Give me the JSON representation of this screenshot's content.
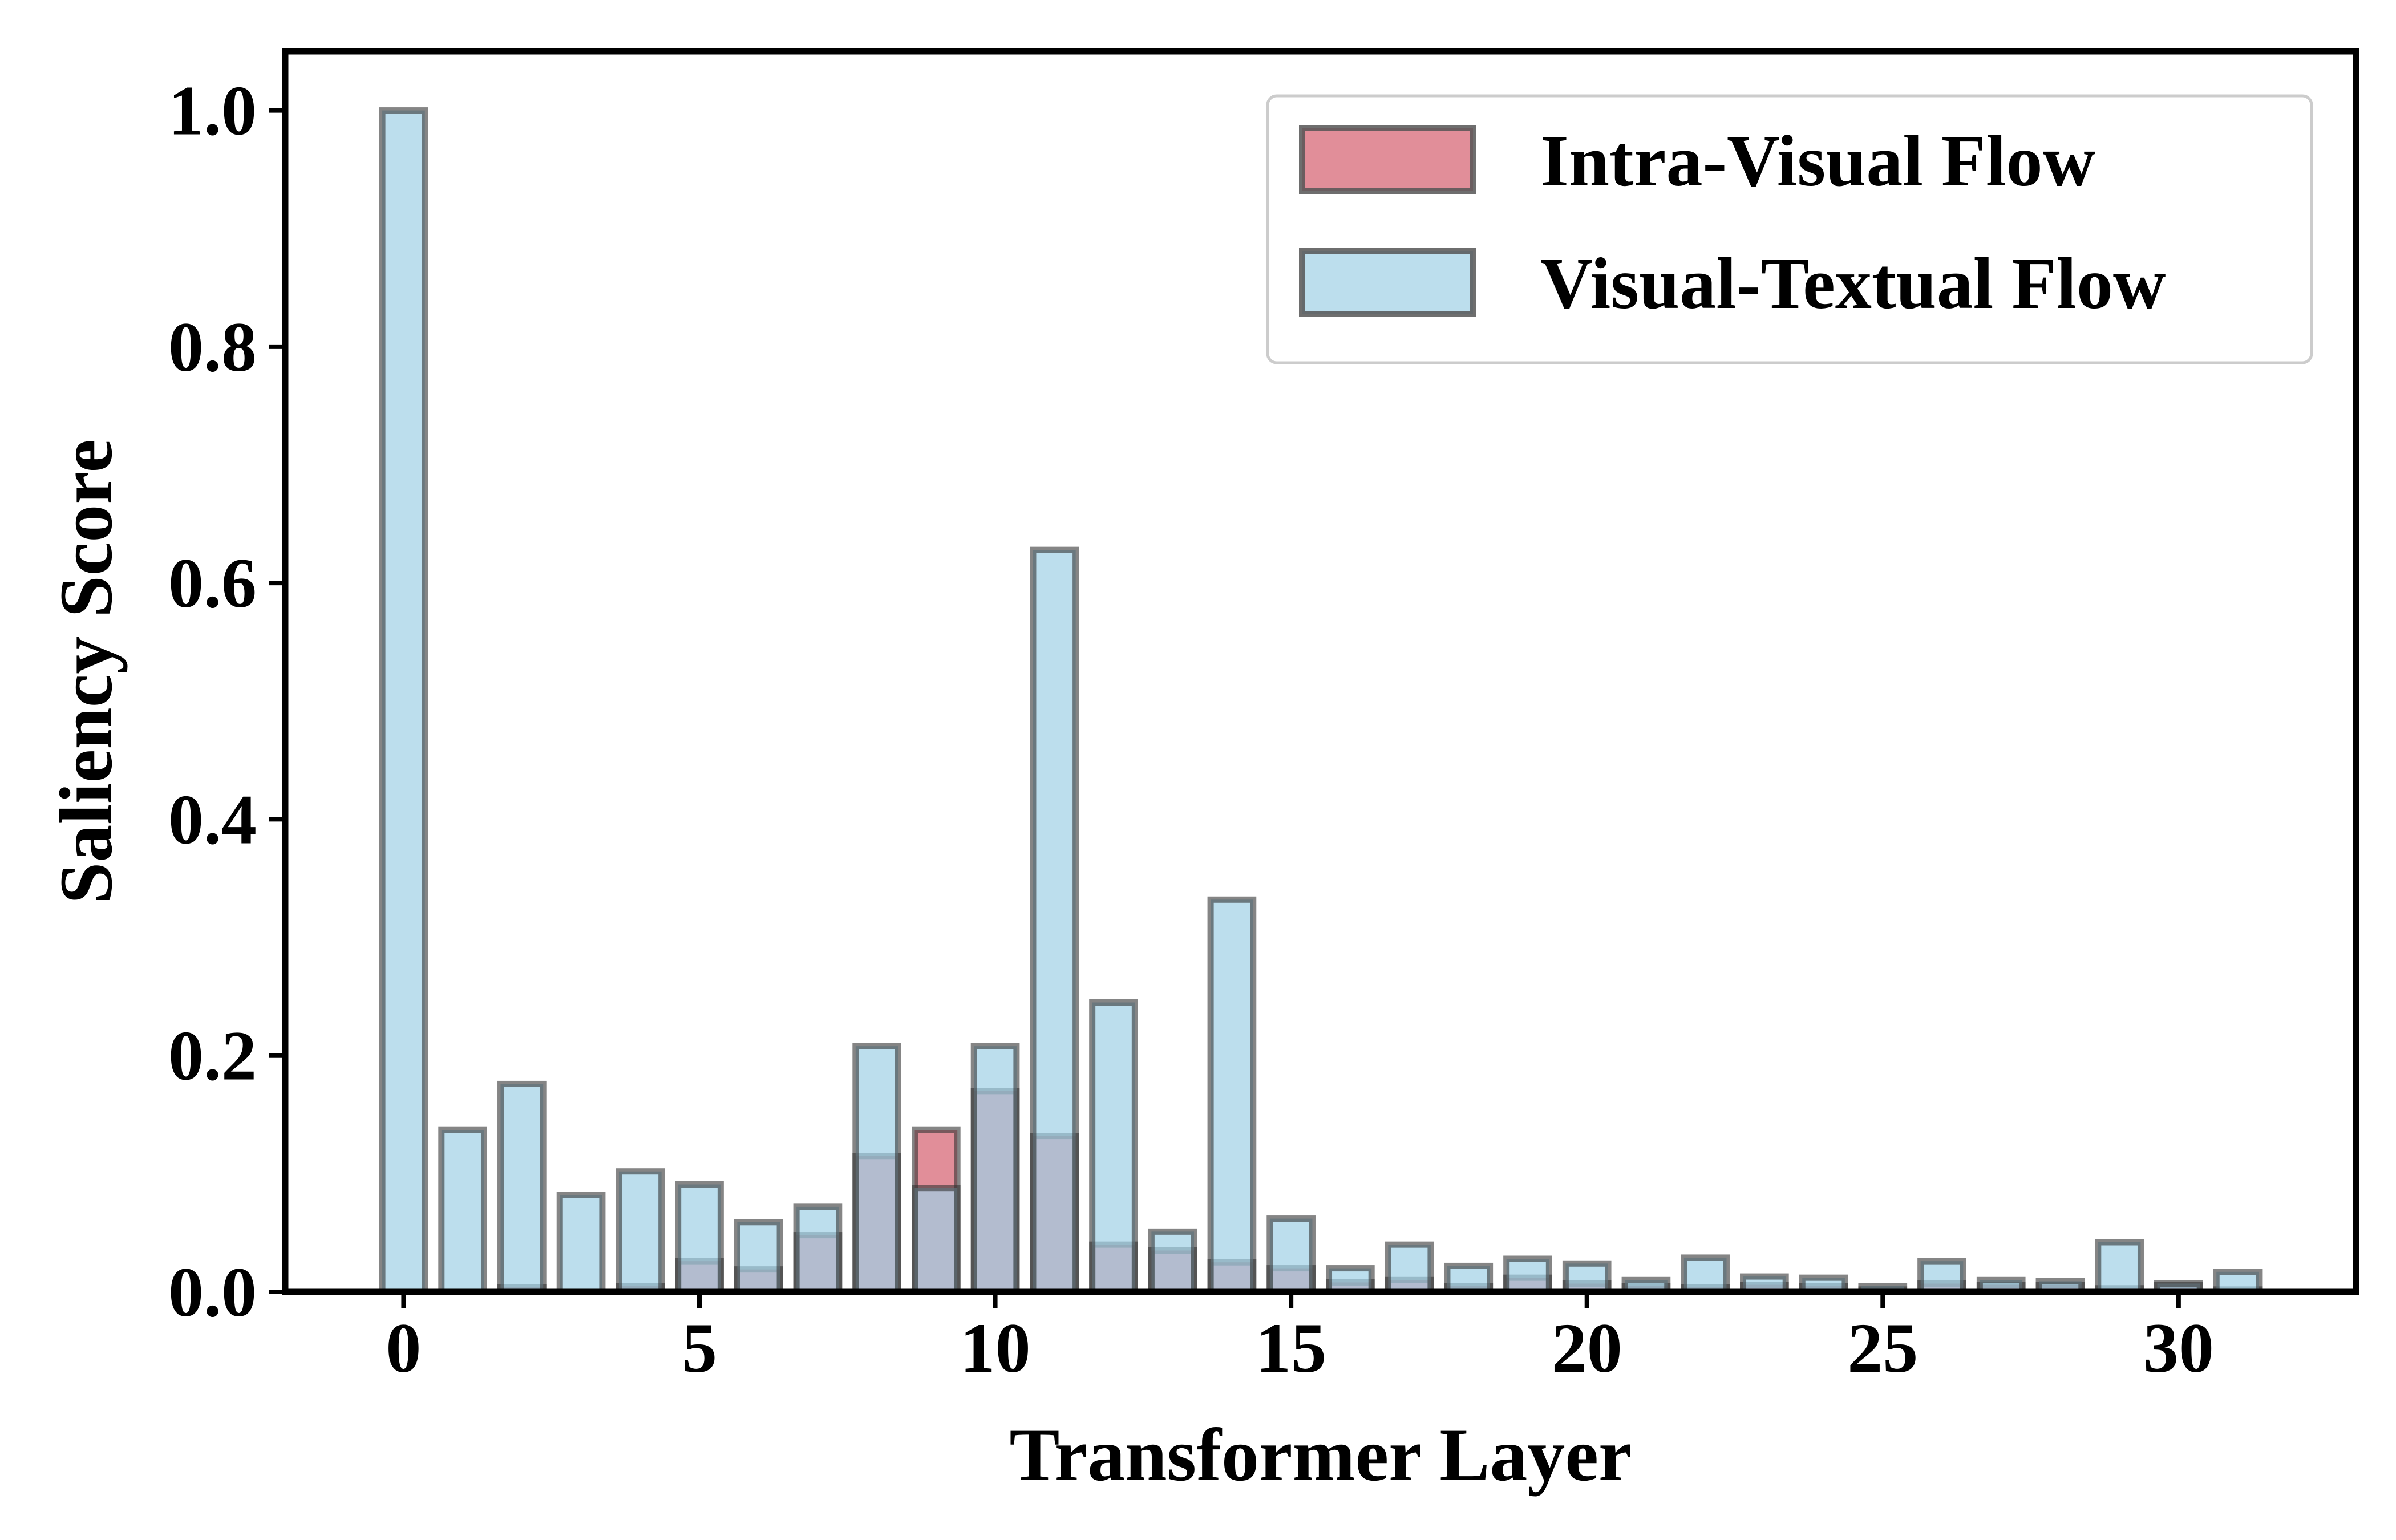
{
  "chart_data": {
    "type": "bar",
    "xlabel": "Transformer Layer",
    "ylabel": "Saliency Score",
    "x": [
      0,
      1,
      2,
      3,
      4,
      5,
      6,
      7,
      8,
      9,
      10,
      11,
      12,
      13,
      14,
      15,
      16,
      17,
      18,
      19,
      20,
      21,
      22,
      23,
      24,
      25,
      26,
      27,
      28,
      29,
      30,
      31
    ],
    "xlim": [
      -2,
      33
    ],
    "ylim": [
      0,
      1.05
    ],
    "x_ticks": [
      0,
      5,
      10,
      15,
      20,
      25,
      30
    ],
    "x_tick_labels": [
      "0",
      "5",
      "10",
      "15",
      "20",
      "25",
      "30"
    ],
    "y_ticks": [
      0,
      0.2,
      0.4,
      0.6,
      0.8,
      1.0
    ],
    "y_tick_labels": [
      "0.0",
      "0.2",
      "0.4",
      "0.6",
      "0.8",
      "1.0"
    ],
    "grid": false,
    "legend_position": "top-right",
    "series": [
      {
        "name": "Intra-Visual Flow",
        "color": "#d9727f",
        "values": [
          0.0,
          0.0,
          0.004,
          0.0,
          0.005,
          0.026,
          0.019,
          0.048,
          0.115,
          0.137,
          0.17,
          0.132,
          0.04,
          0.035,
          0.025,
          0.02,
          0.008,
          0.01,
          0.005,
          0.012,
          0.007,
          0.005,
          0.004,
          0.006,
          0.005,
          0.002,
          0.007,
          0.006,
          0.006,
          0.003,
          0.006,
          0.002
        ]
      },
      {
        "name": "Visual-Textual Flow",
        "color": "#9fd0e6",
        "values": [
          1.0,
          0.137,
          0.176,
          0.082,
          0.102,
          0.091,
          0.059,
          0.072,
          0.208,
          0.088,
          0.208,
          0.628,
          0.245,
          0.051,
          0.332,
          0.062,
          0.02,
          0.04,
          0.022,
          0.028,
          0.024,
          0.01,
          0.029,
          0.013,
          0.012,
          0.005,
          0.026,
          0.01,
          0.009,
          0.042,
          0.007,
          0.017
        ]
      }
    ]
  }
}
